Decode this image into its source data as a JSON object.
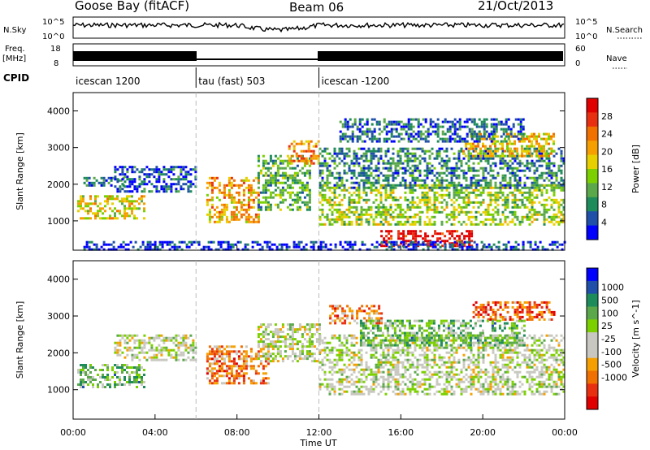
{
  "header": {
    "station": "Goose Bay (fitACF)",
    "beam": "Beam 06",
    "date": "21/Oct/2013"
  },
  "strip_labels": {
    "nsky": "N.Sky",
    "freq_line1": "Freq.",
    "freq_line2": "[MHz]",
    "cpid": "CPID",
    "nsearch": "N.Search",
    "nave": "Nave",
    "noise_top": "10^5",
    "noise_bottom": "10^0",
    "noise_top_right": "10^5",
    "noise_bottom_right": "10^0",
    "freq_top": "18",
    "freq_bottom": "8",
    "nave_top": "60",
    "nave_bottom": "0"
  },
  "cpid_segments": [
    {
      "label": "icescan 1200",
      "start_hour": 0,
      "end_hour": 6
    },
    {
      "label": "tau (fast) 503",
      "start_hour": 6,
      "end_hour": 12
    },
    {
      "label": "icescan -1200",
      "start_hour": 12,
      "end_hour": 24
    }
  ],
  "x_axis": {
    "title": "Time UT",
    "tick_labels": [
      "00:00",
      "04:00",
      "08:00",
      "12:00",
      "16:00",
      "20:00",
      "00:00"
    ],
    "tick_hours": [
      0,
      4,
      8,
      12,
      16,
      20,
      24
    ]
  },
  "chart_data": [
    {
      "type": "heatmap",
      "name": "power",
      "ylabel": "Slant Range [km]",
      "ylim": [
        200,
        4500
      ],
      "x_range_hours": [
        0,
        24
      ],
      "yticks": [
        1000,
        2000,
        3000,
        4000
      ],
      "colorbar_label": "Power [dB]",
      "colorbar_ticks": [
        "4",
        "8",
        "12",
        "16",
        "20",
        "24",
        "28"
      ],
      "colorbar_colors": [
        "#0000ff",
        "#1f4fa8",
        "#1e8b5a",
        "#5aa84a",
        "#7cd000",
        "#e8d000",
        "#f5a000",
        "#f07000",
        "#e83010",
        "#e00000"
      ],
      "regions": [
        {
          "h0": 0.2,
          "h1": 3.5,
          "r0": 1100,
          "r1": 1700,
          "level": 0.55
        },
        {
          "h0": 0.5,
          "h1": 2.5,
          "r0": 2000,
          "r1": 2200,
          "level": 0.2
        },
        {
          "h0": 2.0,
          "h1": 6.0,
          "r0": 1800,
          "r1": 2500,
          "level": 0.15
        },
        {
          "h0": 6.5,
          "h1": 9.0,
          "r0": 1000,
          "r1": 2200,
          "level": 0.65
        },
        {
          "h0": 9.0,
          "h1": 11.5,
          "r0": 1300,
          "r1": 2800,
          "level": 0.35
        },
        {
          "h0": 10.5,
          "h1": 12.0,
          "r0": 2600,
          "r1": 3200,
          "level": 0.7
        },
        {
          "h0": 12.0,
          "h1": 24.0,
          "r0": 900,
          "r1": 2000,
          "level": 0.45
        },
        {
          "h0": 12.0,
          "h1": 24.0,
          "r0": 1900,
          "r1": 3000,
          "level": 0.25
        },
        {
          "h0": 15.0,
          "h1": 19.5,
          "r0": 350,
          "r1": 750,
          "level": 0.95
        },
        {
          "h0": 19.0,
          "h1": 23.5,
          "r0": 2800,
          "r1": 3400,
          "level": 0.6
        },
        {
          "h0": 13.0,
          "h1": 22.0,
          "r0": 3200,
          "r1": 3800,
          "level": 0.2
        },
        {
          "h0": 0.5,
          "h1": 24.0,
          "r0": 250,
          "r1": 450,
          "level": 0.1
        }
      ]
    },
    {
      "type": "heatmap",
      "name": "velocity",
      "ylabel": "Slant Range [km]",
      "ylim": [
        200,
        4500
      ],
      "x_range_hours": [
        0,
        24
      ],
      "yticks": [
        1000,
        2000,
        3000,
        4000
      ],
      "colorbar_label": "Velocity [m s^-1]",
      "colorbar_ticks": [
        "1000",
        "500",
        "100",
        "25",
        "-25",
        "-100",
        "-500",
        "-1000"
      ],
      "colorbar_colors": [
        "#0000ff",
        "#1f4fa8",
        "#1e8b5a",
        "#5aa84a",
        "#7cd000",
        "#c8c8c0",
        "#c8c8c0",
        "#f5a000",
        "#f07000",
        "#e83010",
        "#e00000"
      ],
      "regions": [
        {
          "h0": 0.2,
          "h1": 3.5,
          "r0": 1100,
          "r1": 1700,
          "level": 0.35
        },
        {
          "h0": 2.0,
          "h1": 6.0,
          "r0": 1800,
          "r1": 2500,
          "level": 0.5
        },
        {
          "h0": 6.5,
          "h1": 9.5,
          "r0": 1200,
          "r1": 2200,
          "level": 0.75
        },
        {
          "h0": 9.0,
          "h1": 12.0,
          "r0": 1800,
          "r1": 2800,
          "level": 0.5
        },
        {
          "h0": 12.0,
          "h1": 24.0,
          "r0": 900,
          "r1": 2500,
          "level": 0.5
        },
        {
          "h0": 12.5,
          "h1": 15.0,
          "r0": 2800,
          "r1": 3300,
          "level": 0.75
        },
        {
          "h0": 19.5,
          "h1": 23.5,
          "r0": 2900,
          "r1": 3400,
          "level": 0.8
        },
        {
          "h0": 14.0,
          "h1": 22.0,
          "r0": 2200,
          "r1": 2900,
          "level": 0.35
        }
      ]
    }
  ]
}
